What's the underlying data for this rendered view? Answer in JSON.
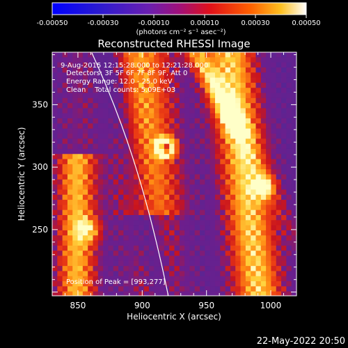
{
  "colorbar": {
    "ticks": [
      "-0.00050",
      "-0.00030",
      "-0.00010",
      "0.00010",
      "0.00030",
      "0.00050"
    ],
    "values": [
      -0.0005,
      -0.0003,
      -0.0001,
      0.0001,
      0.0003,
      0.0005
    ],
    "range": [
      -0.0005,
      0.0005
    ],
    "unit_label": "(photons cm⁻² s⁻¹ asec⁻²)"
  },
  "title": "Reconstructed RHESSI Image",
  "annotations": {
    "line1": "9-Aug-2015 12:15:28.000 to 12:21:28.000",
    "line2": "Detectors: 3F 5F 6F 7F 8F 9F, Att 0",
    "line3": "Energy Range: 12.0 - 25.0 keV",
    "line4": "Clean    Total counts: 5.09E+03",
    "peak": "Position of Peak = [993,277]"
  },
  "axes": {
    "xlabel": "Heliocentric X (arcsec)",
    "ylabel": "Heliocentric Y (arcsec)",
    "xrange": [
      830,
      1020
    ],
    "yrange": [
      197,
      392
    ],
    "xticks": [
      850,
      900,
      950,
      1000
    ],
    "yticks": [
      250,
      300,
      350
    ]
  },
  "peak_position": [
    993,
    277
  ],
  "timestamp": "22-May-2022 20:50",
  "colors": {
    "background": "#000000",
    "axes": "#ffffff",
    "limb_line": "#ffffff",
    "low": "#5a2aa8",
    "mid": "#e0301e",
    "high": "#ffffd8"
  }
}
